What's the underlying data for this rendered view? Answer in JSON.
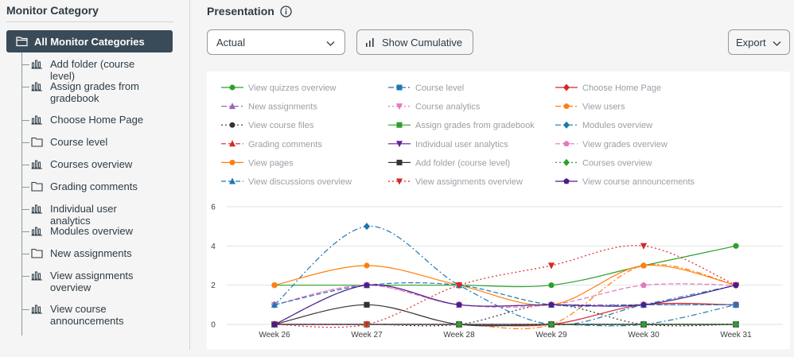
{
  "sidebar": {
    "title": "Monitor Category",
    "root_label": "All Monitor Categories",
    "items": [
      {
        "label": "Add folder (course level)",
        "icon": "bar-chart-icon"
      },
      {
        "label": "Assign grades from gradebook",
        "icon": "bar-chart-icon"
      },
      {
        "label": "Choose Home Page",
        "icon": "bar-chart-icon"
      },
      {
        "label": "Course level",
        "icon": "folder-icon"
      },
      {
        "label": "Courses overview",
        "icon": "bar-chart-icon"
      },
      {
        "label": "Grading comments",
        "icon": "folder-icon"
      },
      {
        "label": "Individual user analytics",
        "icon": "bar-chart-icon"
      },
      {
        "label": "Modules overview",
        "icon": "bar-chart-icon"
      },
      {
        "label": "New assignments",
        "icon": "folder-icon"
      },
      {
        "label": "View assignments overview",
        "icon": "bar-chart-icon"
      },
      {
        "label": "View course announcements",
        "icon": "bar-chart-icon"
      }
    ]
  },
  "header": {
    "title": "Presentation",
    "select_value": "Actual",
    "cumulative_label": "Show Cumulative",
    "export_label": "Export"
  },
  "chart_data": {
    "type": "line",
    "categories": [
      "Week 26",
      "Week 27",
      "Week 28",
      "Week 29",
      "Week 30",
      "Week 31"
    ],
    "ylim": [
      0,
      6
    ],
    "yticks": [
      0,
      2,
      4,
      6
    ],
    "grid": true,
    "legend_position": "top",
    "series": [
      {
        "name": "View quizzes overview",
        "color": "#2ca02c",
        "marker": "circle",
        "dash": "solid",
        "values": [
          2,
          2,
          2,
          2,
          3,
          4
        ]
      },
      {
        "name": "Course level",
        "color": "#1f77b4",
        "marker": "square",
        "dash": "dashdot",
        "values": [
          0,
          0,
          0,
          0,
          0,
          1
        ]
      },
      {
        "name": "Choose Home Page",
        "color": "#d62728",
        "marker": "diamond",
        "dash": "solid",
        "values": [
          0,
          0,
          0,
          0,
          1,
          1
        ]
      },
      {
        "name": "New assignments",
        "color": "#9467bd",
        "marker": "triangle-up",
        "dash": "dashdot",
        "values": [
          0,
          2,
          1,
          1,
          1,
          1
        ]
      },
      {
        "name": "Course analytics",
        "color": "#e377c2",
        "marker": "triangle-down",
        "dash": "dotted",
        "values": [
          1,
          2,
          1,
          1,
          1,
          2
        ]
      },
      {
        "name": "View users",
        "color": "#ff7f0e",
        "marker": "pentagon",
        "dash": "dashdot",
        "values": [
          0,
          0,
          0,
          0,
          3,
          2
        ]
      },
      {
        "name": "View course files",
        "color": "#333333",
        "marker": "circle",
        "dash": "dotted",
        "values": [
          0,
          0,
          0,
          1,
          0,
          0
        ]
      },
      {
        "name": "Assign grades from gradebook",
        "color": "#2ca02c",
        "marker": "square",
        "dash": "solid",
        "values": [
          0,
          0,
          0,
          0,
          0,
          0
        ]
      },
      {
        "name": "Modules overview",
        "color": "#1f77b4",
        "marker": "diamond",
        "dash": "dashdot",
        "values": [
          1,
          5,
          2,
          0,
          1,
          2
        ]
      },
      {
        "name": "Grading comments",
        "color": "#d62728",
        "marker": "triangle-up",
        "dash": "dashed",
        "values": [
          0,
          0,
          0,
          0,
          0,
          0
        ]
      },
      {
        "name": "Individual user analytics",
        "color": "#6a1b9a",
        "marker": "triangle-down",
        "dash": "solid",
        "values": [
          0,
          0,
          0,
          0,
          0,
          0
        ]
      },
      {
        "name": "View grades overview",
        "color": "#e377c2",
        "marker": "pentagon",
        "dash": "dashed",
        "values": [
          1,
          2,
          1,
          1,
          2,
          2
        ]
      },
      {
        "name": "View pages",
        "color": "#ff7f0e",
        "marker": "circle",
        "dash": "solid",
        "values": [
          2,
          3,
          2,
          1,
          3,
          2
        ]
      },
      {
        "name": "Add folder (course level)",
        "color": "#333333",
        "marker": "square",
        "dash": "solid",
        "values": [
          0,
          1,
          0,
          0,
          0,
          0
        ]
      },
      {
        "name": "Courses overview",
        "color": "#2ca02c",
        "marker": "diamond",
        "dash": "dotted",
        "values": [
          0,
          0,
          0,
          0,
          0,
          0
        ]
      },
      {
        "name": "View discussions overview",
        "color": "#1f77b4",
        "marker": "triangle-up",
        "dash": "dashed",
        "values": [
          1,
          2,
          2,
          1,
          1,
          1
        ]
      },
      {
        "name": "View assignments overview",
        "color": "#d62728",
        "marker": "triangle-down",
        "dash": "dotted",
        "values": [
          0,
          0,
          2,
          3,
          4,
          2
        ]
      },
      {
        "name": "View course announcements",
        "color": "#4b1d8c",
        "marker": "pentagon",
        "dash": "solid",
        "values": [
          0,
          2,
          1,
          1,
          1,
          2
        ]
      }
    ]
  }
}
